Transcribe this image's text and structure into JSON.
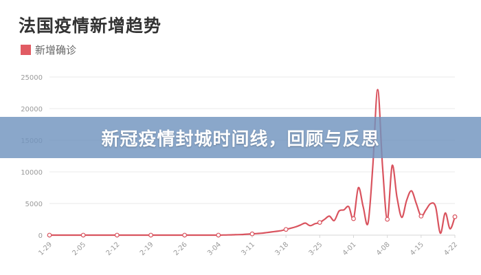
{
  "colors": {
    "series": "#d9535e",
    "legend": "#e15b63",
    "grid": "#e8e8e8",
    "axis_text": "#999999"
  },
  "banner": {
    "text": "新冠疫情封城时间线，回顾与反思"
  },
  "chart_data": {
    "type": "line",
    "title": "法国疫情新增趋势",
    "legend_position": "top-left",
    "grid": true,
    "ylim": [
      0,
      25000
    ],
    "yticks": [
      0,
      5000,
      10000,
      15000,
      20000,
      25000
    ],
    "xlabels": [
      "1-29",
      "2-05",
      "2-12",
      "2-19",
      "2-26",
      "3-04",
      "3-11",
      "3-18",
      "3-25",
      "4-01",
      "4-08",
      "4-15",
      "4-22"
    ],
    "series": [
      {
        "name": "新增确诊",
        "x": [
          0,
          1,
          2,
          3,
          4,
          5,
          6,
          7,
          8,
          9,
          10,
          11,
          12,
          13,
          14,
          15,
          16,
          17,
          18,
          19,
          20,
          21,
          22,
          23,
          24,
          25,
          26,
          27,
          28,
          29,
          30,
          31,
          32,
          33,
          34,
          35,
          36,
          37,
          38,
          39,
          40,
          41,
          42,
          43,
          44,
          45,
          46,
          47,
          48,
          49,
          50,
          51,
          52,
          53,
          54,
          55,
          56,
          57,
          58,
          59,
          60,
          61,
          62,
          63,
          64,
          65,
          66,
          67,
          68,
          69,
          70,
          71,
          72,
          73,
          74,
          75,
          76,
          77,
          78,
          79,
          80,
          81,
          82,
          83,
          84
        ],
        "y": [
          0,
          0,
          0,
          0,
          0,
          0,
          0,
          0,
          0,
          0,
          0,
          0,
          0,
          0,
          0,
          0,
          0,
          0,
          0,
          0,
          0,
          0,
          0,
          0,
          0,
          0,
          0,
          0,
          0,
          0,
          0,
          0,
          0,
          0,
          0,
          0,
          20,
          30,
          50,
          80,
          100,
          150,
          200,
          250,
          300,
          400,
          500,
          600,
          700,
          900,
          1100,
          1300,
          1600,
          1900,
          1500,
          1800,
          2000,
          2500,
          3000,
          2300,
          3800,
          4000,
          4500,
          2600,
          7500,
          4500,
          1900,
          11000,
          23000,
          11000,
          2500,
          11000,
          6000,
          2800,
          5500,
          7000,
          5000,
          3000,
          4000,
          5000,
          4500,
          300,
          3500,
          1000,
          2900
        ],
        "marked_x": [
          0,
          7,
          14,
          21,
          28,
          35,
          42,
          49,
          56,
          63,
          70,
          77,
          84
        ]
      }
    ]
  }
}
